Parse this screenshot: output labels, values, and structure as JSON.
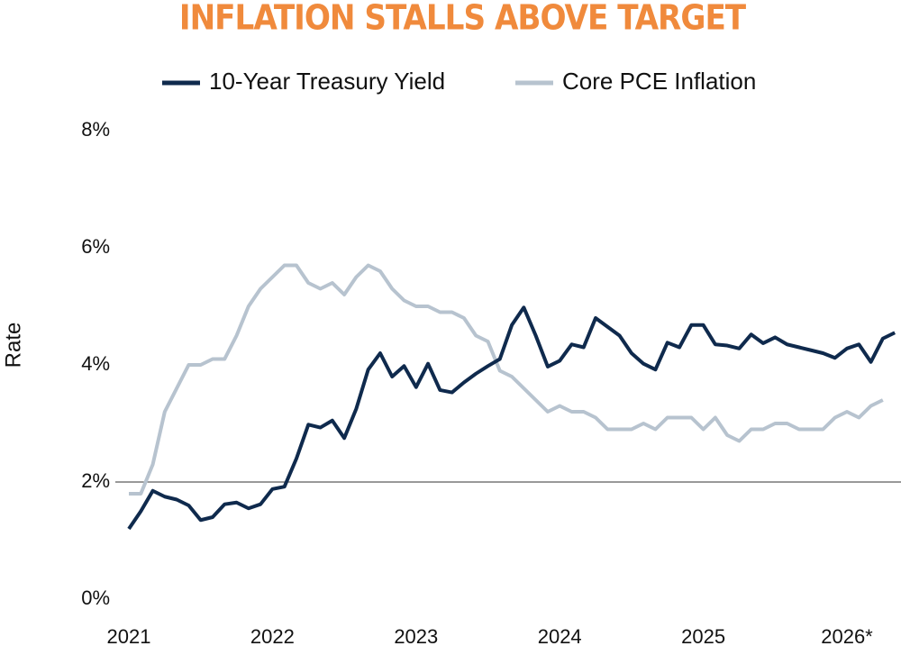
{
  "chart_data": {
    "type": "line",
    "title": "INFLATION STALLS ABOVE TARGET",
    "y_label": "Rate",
    "categories": [
      "2021",
      null,
      null,
      null,
      null,
      null,
      null,
      null,
      null,
      null,
      null,
      null,
      "2022",
      null,
      null,
      null,
      null,
      null,
      null,
      null,
      null,
      null,
      null,
      null,
      "2023",
      null,
      null,
      null,
      null,
      null,
      null,
      null,
      null,
      null,
      null,
      null,
      "2024",
      null,
      null,
      null,
      null,
      null,
      null,
      null,
      null,
      null,
      null,
      null,
      "2025",
      null,
      null,
      null,
      null,
      null,
      null,
      null,
      null,
      null,
      null,
      null,
      "2026*",
      null,
      null,
      null,
      null
    ],
    "series": [
      {
        "name": "10-Year Treasury Yield",
        "color": "#0f2a4d",
        "values": [
          1.2,
          1.5,
          1.85,
          1.75,
          1.7,
          1.6,
          1.35,
          1.4,
          1.62,
          1.65,
          1.55,
          1.62,
          1.88,
          1.92,
          2.4,
          2.98,
          2.93,
          3.05,
          2.75,
          3.25,
          3.92,
          4.2,
          3.8,
          3.98,
          3.62,
          4.02,
          3.57,
          3.53,
          3.7,
          3.85,
          3.98,
          4.1,
          4.68,
          4.98,
          4.5,
          3.97,
          4.07,
          4.35,
          4.3,
          4.8,
          4.65,
          4.5,
          4.2,
          4.02,
          3.92,
          4.38,
          4.3,
          4.68,
          4.68,
          4.35,
          4.33,
          4.28,
          4.52,
          4.37,
          4.47,
          4.35,
          4.3,
          4.25,
          4.2,
          4.12,
          4.28,
          4.35,
          4.05,
          4.45,
          4.55
        ]
      },
      {
        "name": "Core PCE Inflation",
        "color": "#b7c3cf",
        "values": [
          1.8,
          1.8,
          2.3,
          3.2,
          3.6,
          4.0,
          4.0,
          4.1,
          4.1,
          4.5,
          5.0,
          5.3,
          5.5,
          5.7,
          5.7,
          5.4,
          5.3,
          5.4,
          5.2,
          5.5,
          5.7,
          5.6,
          5.3,
          5.1,
          5.0,
          5.0,
          4.9,
          4.9,
          4.8,
          4.5,
          4.4,
          3.9,
          3.8,
          3.6,
          3.4,
          3.2,
          3.3,
          3.2,
          3.2,
          3.1,
          2.9,
          2.9,
          2.9,
          3.0,
          2.9,
          3.1,
          3.1,
          3.1,
          2.9,
          3.1,
          2.8,
          2.7,
          2.9,
          2.9,
          3.0,
          3.0,
          2.9,
          2.9,
          2.9,
          3.1,
          3.2,
          3.1,
          3.3,
          3.4,
          null
        ]
      }
    ],
    "ylim": [
      0,
      8
    ],
    "yticks": [
      {
        "value": 0,
        "label": "0%"
      },
      {
        "value": 2,
        "label": "2%"
      },
      {
        "value": 4,
        "label": "4%"
      },
      {
        "value": 6,
        "label": "6%"
      },
      {
        "value": 8,
        "label": "8%"
      }
    ],
    "target_line": 2,
    "grid": false
  }
}
